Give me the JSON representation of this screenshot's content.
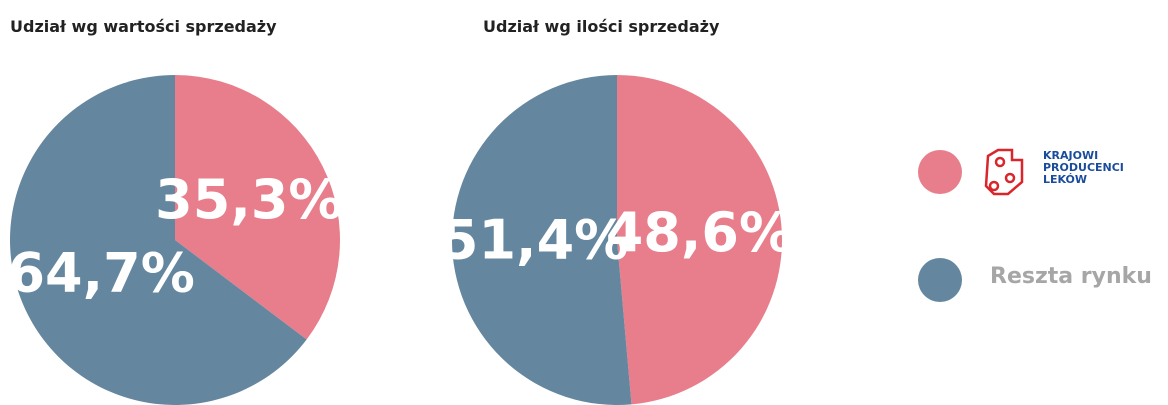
{
  "chart_data": [
    {
      "type": "pie",
      "title": "Udział wg wartości sprzedaży",
      "categories": [
        "KRAJOWI PRODUCENCI LEKÓW",
        "Reszta rynku"
      ],
      "values": [
        35.3,
        64.7
      ],
      "value_labels": [
        "35,3%",
        "64,7%"
      ],
      "colors": [
        "#e87e8b",
        "#64879f"
      ]
    },
    {
      "type": "pie",
      "title": "Udział wg ilości sprzedaży",
      "categories": [
        "KRAJOWI PRODUCENCI LEKÓW",
        "Reszta rynku"
      ],
      "values": [
        48.6,
        51.4
      ],
      "value_labels": [
        "48,6%",
        "51,4%"
      ],
      "colors": [
        "#e87e8b",
        "#64879f"
      ]
    }
  ]
}
